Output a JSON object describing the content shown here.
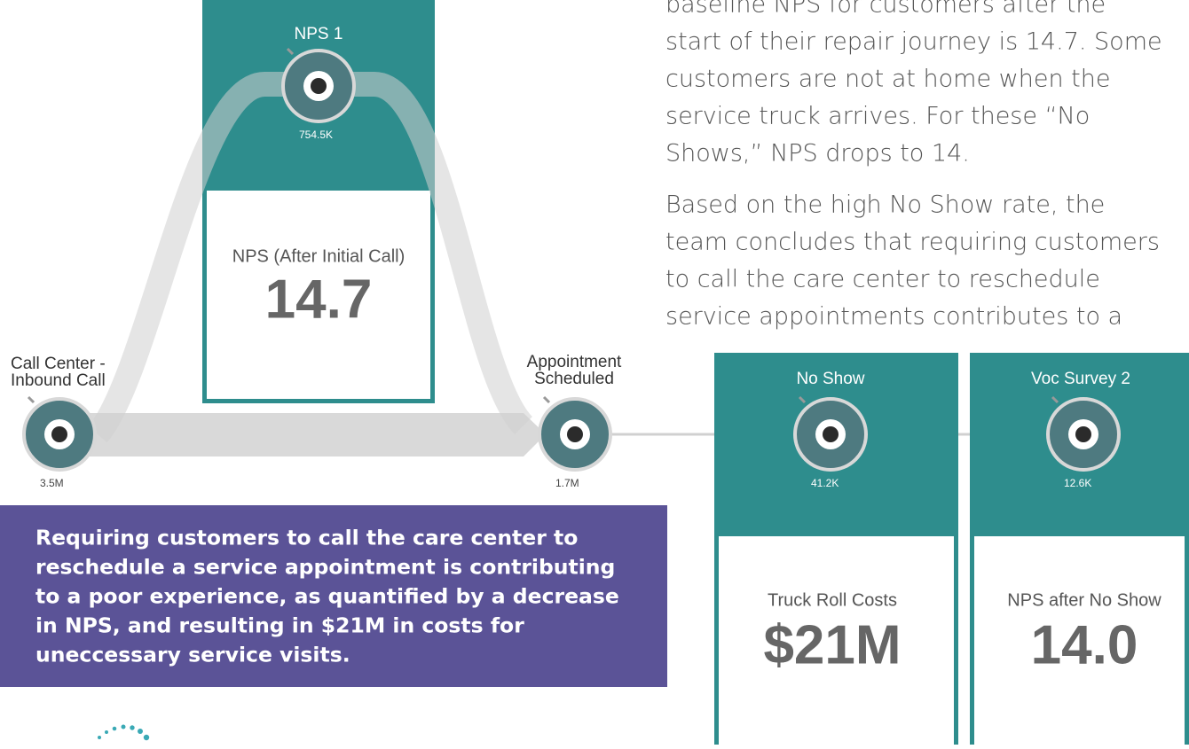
{
  "narrative": {
    "paragraph1": [
      "baseline NPS for customers after the",
      "start of their repair journey is 14.7.  Some",
      "customers are not at home when the",
      "service truck arrives. For these “No",
      "Shows,” NPS drops to 14."
    ],
    "paragraph2": [
      "Based on the high No Show rate, the",
      "team concludes that requiring customers",
      "to call the care center to reschedule",
      "service appointments contributes to a"
    ]
  },
  "nodes": [
    {
      "label": [
        "Call Center -",
        "Inbound Call"
      ],
      "count": "3.5M"
    },
    {
      "label": [
        "Appointment",
        "Scheduled"
      ],
      "count": "1.7M"
    },
    {
      "label": [
        "NPS 1"
      ],
      "count": "754.5K"
    },
    {
      "label": [
        "No Show"
      ],
      "count": "41.2K"
    },
    {
      "label": [
        "Voc Survey 2"
      ],
      "count": "12.6K"
    }
  ],
  "cards": [
    {
      "label": "NPS (After Initial Call)",
      "value": "14.7"
    },
    {
      "label": "Truck Roll Costs",
      "value": "$21M"
    },
    {
      "label": "NPS after No Show",
      "value": "14.0"
    }
  ],
  "callout": [
    "Requiring customers to call the care center to",
    "reschedule a service appointment is contributing",
    "to a poor experience, as quantified by a decrease",
    "in NPS, and resulting in $21M in costs for",
    "uneccessary service visits."
  ]
}
